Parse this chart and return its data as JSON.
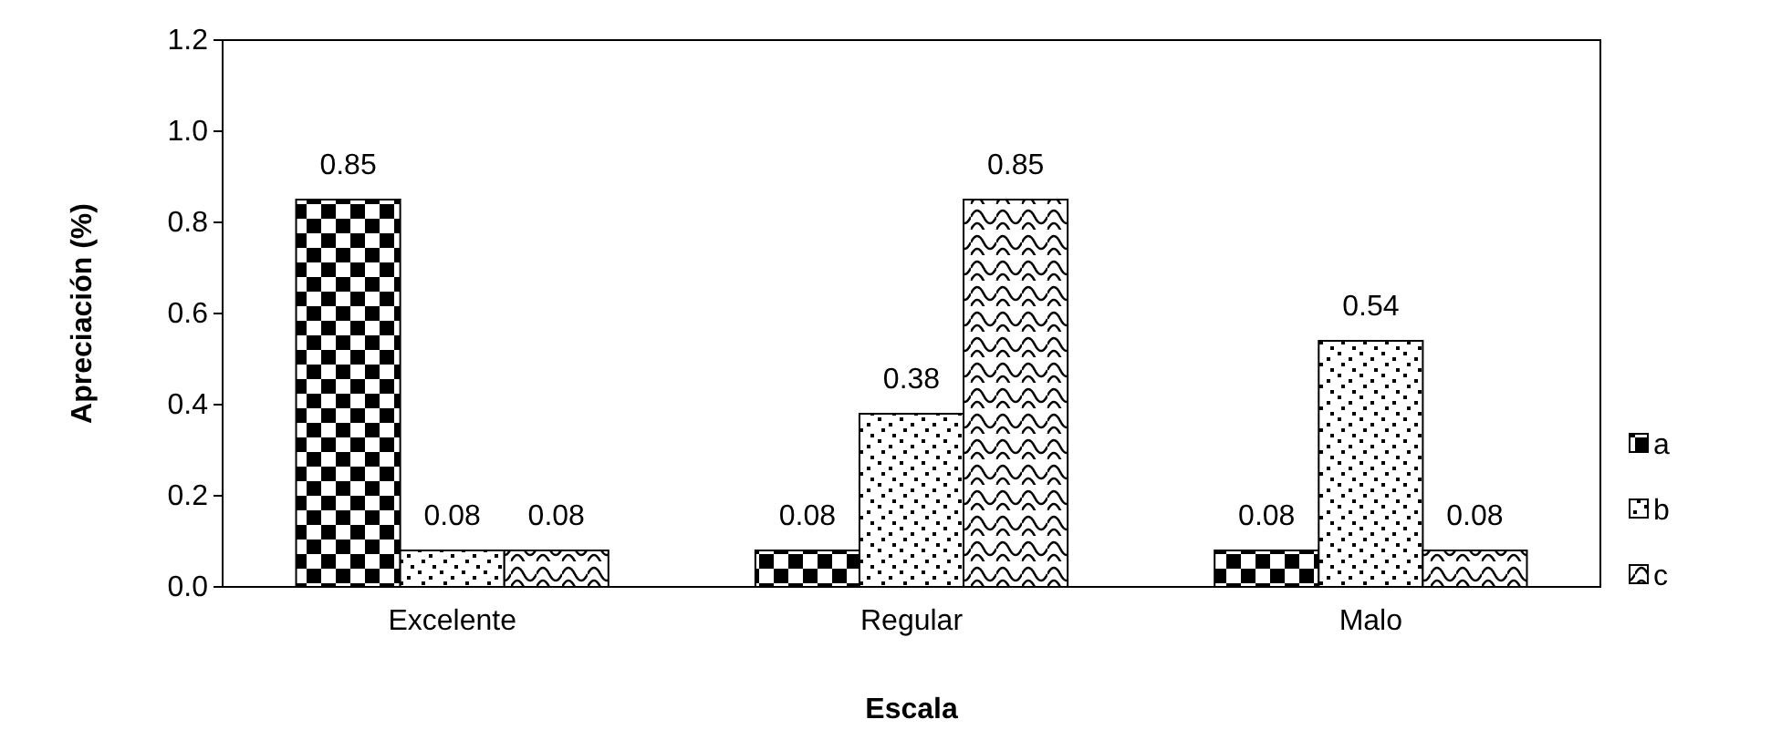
{
  "chart_data": {
    "type": "bar",
    "xlabel": "Escala",
    "ylabel": "Apreciación (%)",
    "categories": [
      "Excelente",
      "Regular",
      "Malo"
    ],
    "series": [
      {
        "name": "a",
        "color": "#000000",
        "values": [
          0.85,
          0.08,
          0.08
        ]
      },
      {
        "name": "b",
        "color": "#000000",
        "values": [
          0.08,
          0.38,
          0.54
        ]
      },
      {
        "name": "c",
        "color": "#000000",
        "values": [
          0.08,
          0.85,
          0.08
        ]
      }
    ],
    "ylim": [
      0,
      1.2
    ],
    "yticks": [
      {
        "value": 0,
        "label": "0.0"
      },
      {
        "value": 0.2,
        "label": "0.2"
      },
      {
        "value": 0.4,
        "label": "0.4"
      },
      {
        "value": 0.6,
        "label": "0.6"
      },
      {
        "value": 0.8,
        "label": "0.8"
      },
      {
        "value": 1,
        "label": "1.0"
      },
      {
        "value": 1.2,
        "label": "1.2"
      }
    ],
    "data_labels": true,
    "legend": "right",
    "grid": false
  }
}
